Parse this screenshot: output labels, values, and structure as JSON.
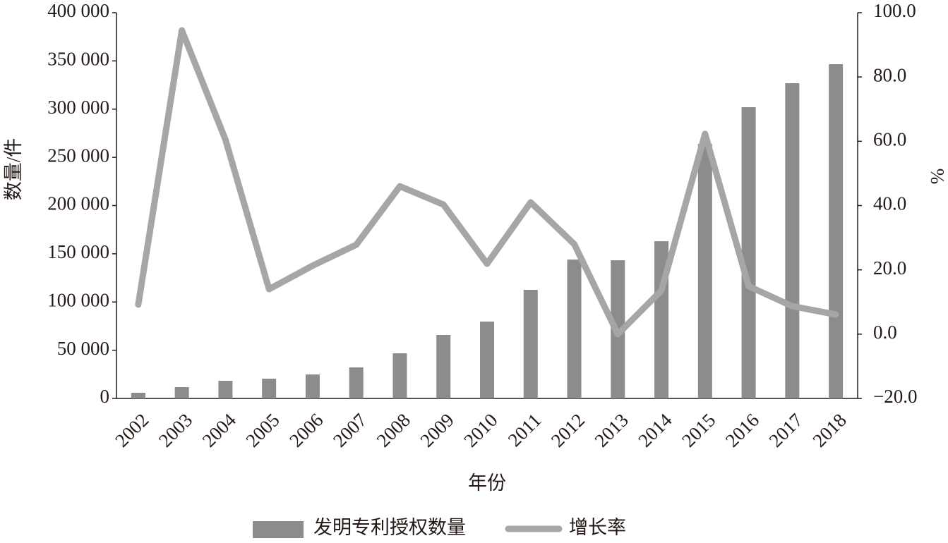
{
  "chart_data": {
    "type": "bar",
    "x_label": "年份",
    "y_label": "数量/件",
    "y2_label": "%",
    "categories": [
      "2002",
      "2003",
      "2004",
      "2005",
      "2006",
      "2007",
      "2008",
      "2009",
      "2010",
      "2011",
      "2012",
      "2013",
      "2014",
      "2015",
      "2016",
      "2017",
      "2018"
    ],
    "series": [
      {
        "name": "发明专利授权数量",
        "type": "bar",
        "color": "#8c8c8c",
        "values": [
          5900,
          11700,
          18300,
          20500,
          24900,
          32200,
          46800,
          65800,
          79700,
          112600,
          144000,
          143300,
          163000,
          264000,
          302000,
          326900,
          346600
        ]
      },
      {
        "name": "增长率",
        "type": "line",
        "axis": "y2",
        "color": "#a6a6a6",
        "values": [
          9.2,
          94.5,
          60.5,
          14.0,
          21.3,
          27.8,
          46.0,
          40.3,
          21.9,
          41.0,
          28.0,
          0.0,
          13.6,
          62.3,
          14.9,
          8.7,
          6.1
        ]
      }
    ],
    "ylim": [
      0,
      400000
    ],
    "yticks": [
      0,
      {
        "value": 50000,
        "label": "50 000"
      },
      {
        "value": 100000,
        "label": "100 000"
      },
      {
        "value": 150000,
        "label": "150 000"
      },
      {
        "value": 200000,
        "label": "200 000"
      },
      {
        "value": 250000,
        "label": "250 000"
      },
      {
        "value": 300000,
        "label": "300 000"
      },
      {
        "value": 350000,
        "label": "350 000"
      },
      {
        "value": 400000,
        "label": "400 000"
      }
    ],
    "y2lim": [
      -20,
      100
    ],
    "y2ticks": [
      {
        "value": -20,
        "label": "−20.0"
      },
      {
        "value": 0,
        "label": "0.0"
      },
      {
        "value": 20,
        "label": "20.0"
      },
      {
        "value": 40,
        "label": "40.0"
      },
      {
        "value": 60,
        "label": "60.0"
      },
      {
        "value": 80,
        "label": "80.0"
      },
      {
        "value": 100,
        "label": "100.0"
      }
    ],
    "grid": false,
    "legend": "bottom"
  }
}
